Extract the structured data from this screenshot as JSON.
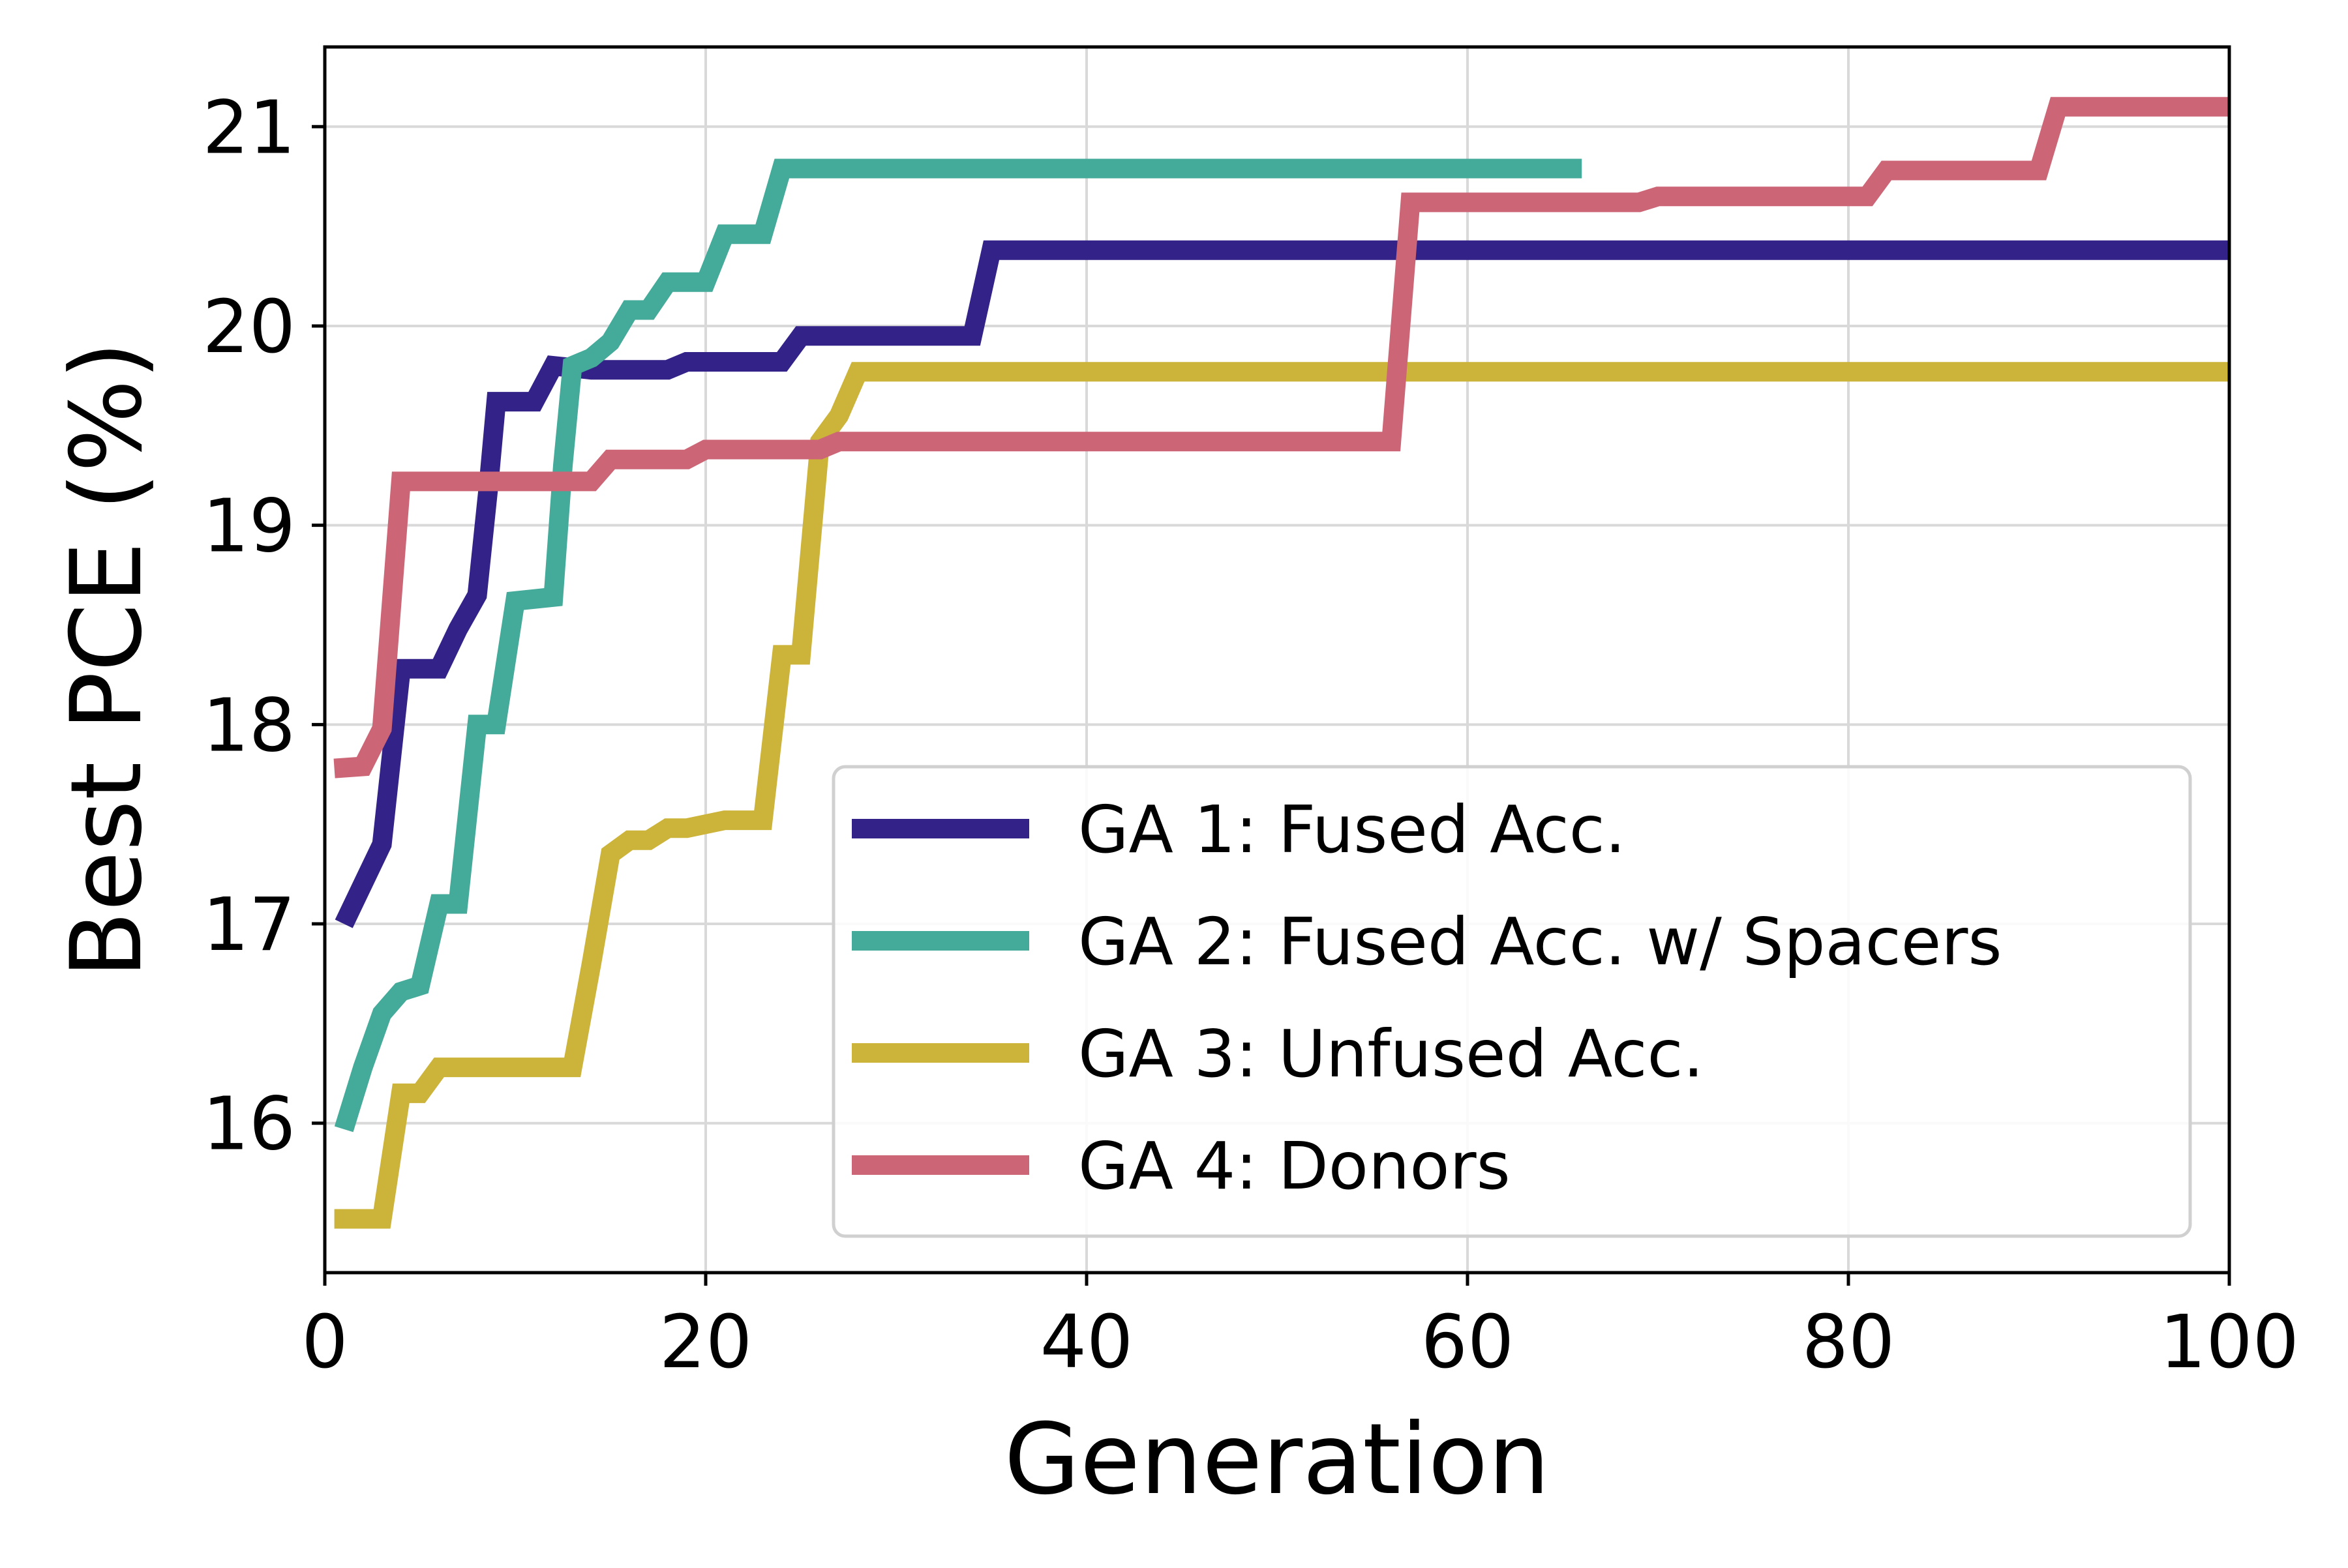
{
  "chart_data": {
    "type": "line",
    "title": "",
    "xlabel": "Generation",
    "ylabel": "Best PCE (%)",
    "xlim": [
      0,
      100
    ],
    "ylim": [
      15.25,
      21.4
    ],
    "xticks": [
      0,
      20,
      40,
      60,
      80,
      100
    ],
    "yticks": [
      16,
      17,
      18,
      19,
      20,
      21
    ],
    "grid": true,
    "legend_position": "lower-right",
    "series": [
      {
        "name": "GA 1: Fused Acc.",
        "color": "#332288",
        "points": [
          [
            1,
            17.0
          ],
          [
            2,
            17.2
          ],
          [
            3,
            17.4
          ],
          [
            4,
            18.28
          ],
          [
            6,
            18.28
          ],
          [
            7,
            18.48
          ],
          [
            8,
            18.65
          ],
          [
            8.6,
            19.2
          ],
          [
            9,
            19.62
          ],
          [
            11,
            19.62
          ],
          [
            12,
            19.8
          ],
          [
            14,
            19.78
          ],
          [
            18,
            19.78
          ],
          [
            19,
            19.82
          ],
          [
            24,
            19.82
          ],
          [
            25,
            19.95
          ],
          [
            34,
            19.95
          ],
          [
            35,
            20.38
          ],
          [
            100,
            20.38
          ]
        ]
      },
      {
        "name": "GA 2: Fused Acc. w/ Spacers",
        "color": "#44AA99",
        "points": [
          [
            1,
            15.97
          ],
          [
            2,
            16.28
          ],
          [
            3,
            16.55
          ],
          [
            4,
            16.66
          ],
          [
            5,
            16.69
          ],
          [
            6,
            17.1
          ],
          [
            7,
            17.1
          ],
          [
            8,
            18.0
          ],
          [
            9,
            18.0
          ],
          [
            10,
            18.62
          ],
          [
            12,
            18.64
          ],
          [
            12.5,
            19.3
          ],
          [
            13,
            19.8
          ],
          [
            14,
            19.84
          ],
          [
            15,
            19.92
          ],
          [
            16,
            20.08
          ],
          [
            17,
            20.08
          ],
          [
            18,
            20.22
          ],
          [
            20,
            20.22
          ],
          [
            21,
            20.46
          ],
          [
            23,
            20.46
          ],
          [
            24,
            20.79
          ],
          [
            66,
            20.79
          ]
        ]
      },
      {
        "name": "GA 3: Unfused Acc.",
        "color": "#CCB33A",
        "points": [
          [
            0.5,
            15.52
          ],
          [
            3,
            15.52
          ],
          [
            4,
            16.15
          ],
          [
            5,
            16.15
          ],
          [
            6,
            16.28
          ],
          [
            13,
            16.28
          ],
          [
            14,
            16.8
          ],
          [
            15,
            17.35
          ],
          [
            16,
            17.42
          ],
          [
            17,
            17.42
          ],
          [
            18,
            17.48
          ],
          [
            19,
            17.48
          ],
          [
            21,
            17.52
          ],
          [
            23,
            17.52
          ],
          [
            24,
            18.35
          ],
          [
            25,
            18.35
          ],
          [
            26,
            19.42
          ],
          [
            27,
            19.55
          ],
          [
            28,
            19.77
          ],
          [
            100,
            19.77
          ]
        ]
      },
      {
        "name": "GA 4: Donors",
        "color": "#CC6677",
        "points": [
          [
            0.5,
            17.78
          ],
          [
            2,
            17.79
          ],
          [
            3,
            17.98
          ],
          [
            4,
            19.22
          ],
          [
            14,
            19.22
          ],
          [
            15,
            19.33
          ],
          [
            19,
            19.33
          ],
          [
            20,
            19.38
          ],
          [
            26,
            19.38
          ],
          [
            27,
            19.42
          ],
          [
            56,
            19.42
          ],
          [
            57,
            20.62
          ],
          [
            69,
            20.62
          ],
          [
            70,
            20.65
          ],
          [
            81,
            20.65
          ],
          [
            82,
            20.78
          ],
          [
            90,
            20.78
          ],
          [
            91,
            21.1
          ],
          [
            100,
            21.1
          ]
        ]
      }
    ]
  }
}
